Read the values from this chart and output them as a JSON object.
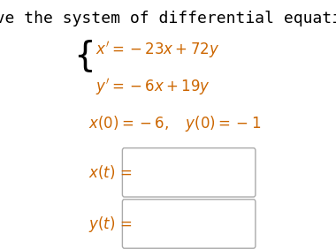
{
  "title": "Solve the system of differential equations",
  "title_fontsize": 13,
  "title_color": "#000000",
  "bg_color": "#ffffff",
  "eq1": "$x'= -23x + 72y$",
  "eq2": "$y'= -6x + 19y$",
  "ic": "$x(0) = -6, \\quad y(0) = -1$",
  "label_xt": "$x(t)$ =",
  "label_yt": "$y(t)$ =",
  "eq_color": "#cc6600",
  "ic_color": "#cc6600",
  "label_color": "#cc6600",
  "text_color": "#000000",
  "box_color": "#aaaaaa",
  "box_fill": "#ffffff"
}
